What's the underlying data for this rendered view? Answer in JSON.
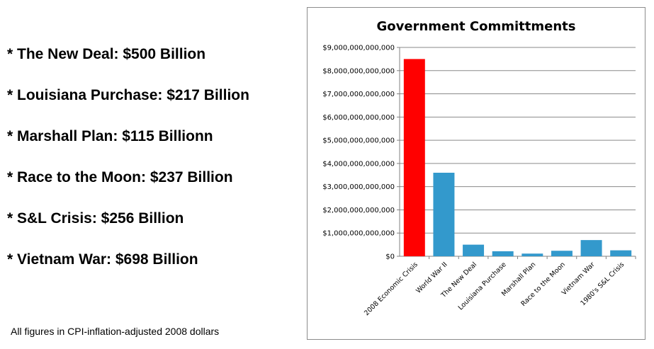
{
  "bullets": [
    "* The New Deal:  $500 Billion",
    "* Louisiana Purchase:  $217 Billion",
    "* Marshall Plan:  $115 Billionn",
    "* Race to the Moon:  $237 Billion",
    "* S&L Crisis:  $256 Billion",
    "* Vietnam War:  $698 Billion"
  ],
  "footnote": "All figures in CPI-inflation-adjusted 2008 dollars",
  "chart_data": {
    "type": "bar",
    "title": "Government Committments",
    "xlabel": "",
    "ylabel": "",
    "categories": [
      "2008 Economic Crisis",
      "World War II",
      "The New Deal",
      "Louisiana Purchase",
      "Marshall Plan",
      "Race to the Moon",
      "Vietnam War",
      "1980's S&L Crisis"
    ],
    "values": [
      8500000000000,
      3600000000000,
      500000000000,
      217000000000,
      115000000000,
      237000000000,
      698000000000,
      256000000000
    ],
    "bar_colors": [
      "#ff0000",
      "#3399cc",
      "#3399cc",
      "#3399cc",
      "#3399cc",
      "#3399cc",
      "#3399cc",
      "#3399cc"
    ],
    "ylim": [
      0,
      9000000000000
    ],
    "yticks": [
      0,
      1000000000000,
      2000000000000,
      3000000000000,
      4000000000000,
      5000000000000,
      6000000000000,
      7000000000000,
      8000000000000,
      9000000000000
    ],
    "ytick_labels": [
      "$0",
      "$1,000,000,000,000",
      "$2,000,000,000,000",
      "$3,000,000,000,000",
      "$4,000,000,000,000",
      "$5,000,000,000,000",
      "$6,000,000,000,000",
      "$7,000,000,000,000",
      "$8,000,000,000,000",
      "$9,000,000,000,000"
    ],
    "grid": true,
    "legend": false
  }
}
